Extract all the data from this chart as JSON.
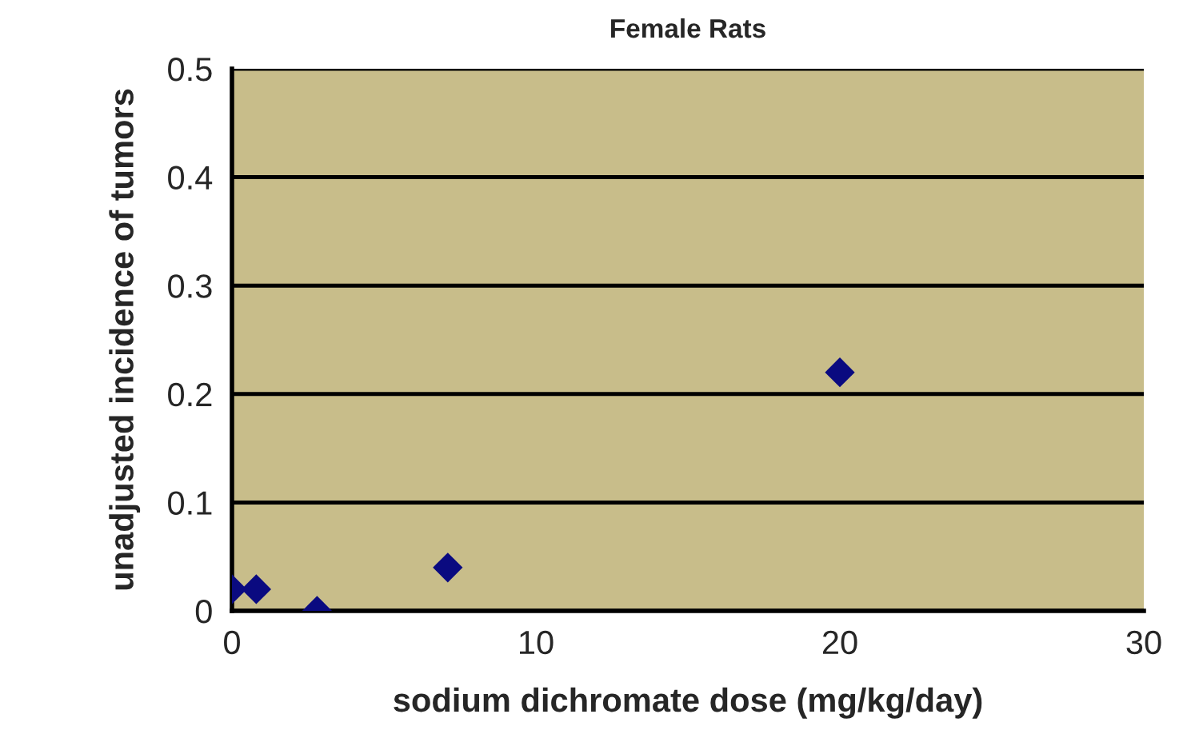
{
  "chart_data": {
    "type": "scatter",
    "title": "Female Rats",
    "xlabel": "sodium dichromate dose (mg/kg/day)",
    "ylabel": "unadjusted incidence of tumors",
    "x": [
      0,
      0.8,
      2.8,
      7.1,
      20
    ],
    "series": [
      {
        "color": "#0a0a80",
        "values": [
          0.02,
          0.02,
          0,
          0.04,
          0.22
        ]
      }
    ],
    "xlim": [
      0,
      30
    ],
    "xticks": [
      0,
      10,
      20,
      30
    ],
    "ylim": [
      0,
      0.5
    ],
    "yticks": [
      0,
      0.1,
      0.2,
      0.3,
      0.4,
      0.5
    ],
    "grid": "y",
    "marker": "diamond",
    "legend": false
  }
}
